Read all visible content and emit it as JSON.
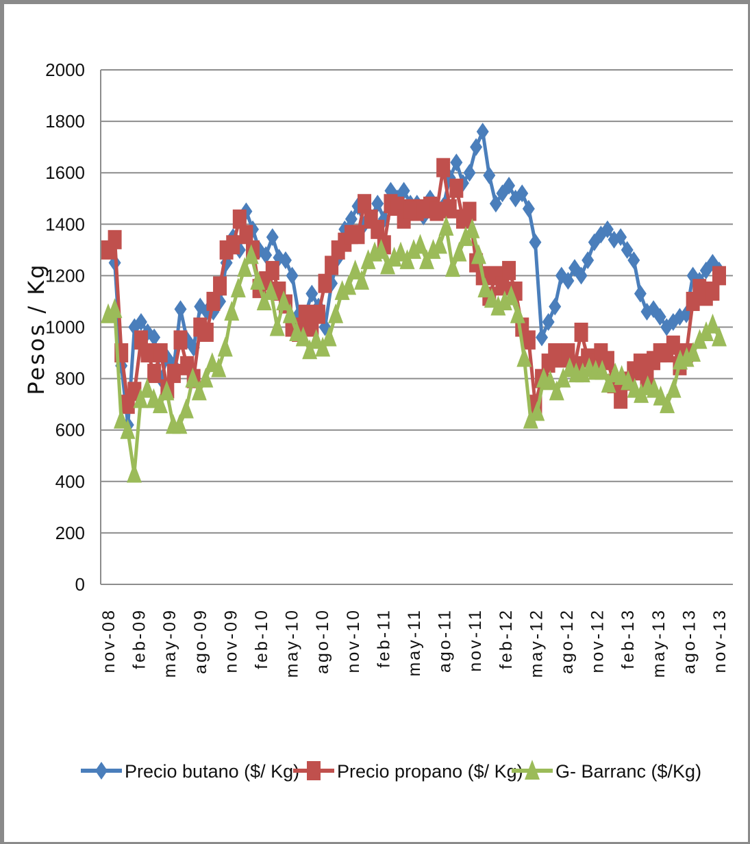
{
  "chart_data": {
    "type": "line",
    "title": "",
    "xlabel": "",
    "ylabel": "Pesos / Kg",
    "ylim": [
      0,
      2000
    ],
    "yticks": [
      0,
      200,
      400,
      600,
      800,
      1000,
      1200,
      1400,
      1600,
      1800,
      2000
    ],
    "grid": true,
    "legend_position": "bottom",
    "xtick_labels": [
      "nov-08",
      "feb-09",
      "may-09",
      "ago-09",
      "nov-09",
      "feb-10",
      "may-10",
      "ago-10",
      "nov-10",
      "feb-11",
      "may-11",
      "ago-11",
      "nov-11",
      "feb-12",
      "may-12",
      "ago-12",
      "nov-12",
      "feb-13",
      "may-13",
      "ago-13",
      "nov-13"
    ],
    "series": [
      {
        "name": "Precio butano ($/ Kg)",
        "color": "#4a7ebb",
        "marker": "diamond",
        "values": [
          1300,
          1250,
          850,
          620,
          1000,
          1020,
          980,
          960,
          800,
          880,
          850,
          1070,
          950,
          920,
          1080,
          1060,
          1060,
          1100,
          1250,
          1350,
          1300,
          1450,
          1380,
          1300,
          1280,
          1350,
          1270,
          1260,
          1200,
          1050,
          1050,
          1130,
          1080,
          1000,
          1170,
          1270,
          1380,
          1420,
          1470,
          1400,
          1420,
          1480,
          1420,
          1530,
          1500,
          1530,
          1480,
          1480,
          1430,
          1500,
          1450,
          1470,
          1580,
          1640,
          1560,
          1600,
          1700,
          1760,
          1590,
          1480,
          1520,
          1550,
          1500,
          1520,
          1460,
          1330,
          960,
          1020,
          1080,
          1200,
          1180,
          1230,
          1200,
          1260,
          1330,
          1360,
          1380,
          1340,
          1350,
          1300,
          1260,
          1130,
          1060,
          1070,
          1040,
          1000,
          1020,
          1040,
          1050,
          1200,
          1180,
          1220,
          1250,
          1220
        ]
      },
      {
        "name": "Precio propano ($/ Kg)",
        "color": "#c0504d",
        "marker": "square",
        "values": [
          1300,
          1340,
          900,
          700,
          750,
          950,
          900,
          820,
          900,
          760,
          820,
          950,
          850,
          800,
          1000,
          980,
          1100,
          1160,
          1300,
          1320,
          1420,
          1360,
          1300,
          1150,
          1180,
          1220,
          1140,
          1090,
          1000,
          980,
          1050,
          1000,
          1050,
          1170,
          1240,
          1300,
          1330,
          1360,
          1360,
          1480,
          1420,
          1380,
          1320,
          1480,
          1470,
          1420,
          1460,
          1450,
          1460,
          1470,
          1450,
          1620,
          1460,
          1540,
          1420,
          1450,
          1250,
          1200,
          1120,
          1200,
          1160,
          1220,
          1140,
          1000,
          950,
          700,
          800,
          860,
          900,
          880,
          900,
          850,
          980,
          880,
          860,
          900,
          870,
          780,
          720,
          790,
          830,
          860,
          800,
          870,
          900,
          900,
          930,
          850,
          900,
          1100,
          1150,
          1120,
          1140,
          1200
        ]
      },
      {
        "name": "G- Barranc ($/Kg)",
        "color": "#9bbb59",
        "marker": "triangle",
        "values": [
          1050,
          1070,
          640,
          600,
          430,
          720,
          760,
          720,
          700,
          750,
          620,
          620,
          680,
          800,
          750,
          800,
          860,
          840,
          920,
          1060,
          1150,
          1230,
          1280,
          1180,
          1100,
          1140,
          1000,
          1100,
          1050,
          980,
          960,
          910,
          950,
          920,
          960,
          1050,
          1140,
          1160,
          1220,
          1180,
          1260,
          1290,
          1300,
          1240,
          1270,
          1290,
          1260,
          1300,
          1320,
          1260,
          1300,
          1320,
          1390,
          1230,
          1290,
          1350,
          1380,
          1280,
          1150,
          1110,
          1080,
          1100,
          1120,
          1050,
          880,
          640,
          670,
          800,
          790,
          750,
          800,
          840,
          820,
          820,
          840,
          830,
          830,
          780,
          820,
          810,
          790,
          760,
          740,
          770,
          760,
          730,
          700,
          760,
          870,
          880,
          900,
          950,
          980,
          1010,
          960
        ]
      }
    ]
  }
}
